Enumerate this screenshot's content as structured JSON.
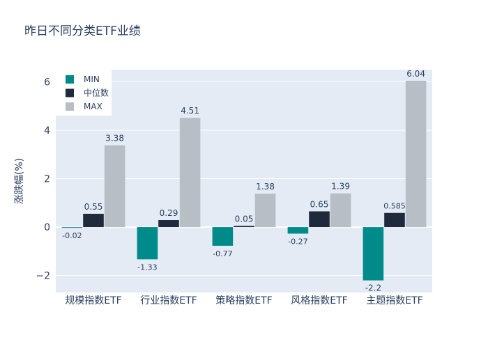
{
  "chart_data": {
    "type": "bar",
    "title": "昨日不同分类ETF业绩",
    "xlabel": "",
    "ylabel": "涨跌幅(%)",
    "categories": [
      "规模指数ETF",
      "行业指数ETF",
      "策略指数ETF",
      "风格指数ETF",
      "主题指数ETF"
    ],
    "series": [
      {
        "name": "MIN",
        "values": [
          -0.02,
          -1.33,
          -0.77,
          -0.27,
          -2.2
        ],
        "labels": [
          "-0.02",
          "-1.33",
          "-0.77",
          "-0.27",
          "-2.2"
        ],
        "color": "#008b8b"
      },
      {
        "name": "中位数",
        "values": [
          0.55,
          0.29,
          0.05,
          0.65,
          0.585
        ],
        "labels": [
          "0.55",
          "0.29",
          "0.05",
          "0.65",
          "0.585"
        ],
        "color": "#1f2a3c"
      },
      {
        "name": "MAX",
        "values": [
          3.38,
          4.51,
          1.38,
          1.39,
          6.04
        ],
        "labels": [
          "3.38",
          "4.51",
          "1.38",
          "1.39",
          "6.04"
        ],
        "color": "#b8bec6"
      }
    ],
    "ylim": [
      -2.7,
      6.5
    ],
    "yticks": [
      -2,
      0,
      2,
      4,
      6
    ],
    "ytick_labels": [
      "−2",
      "0",
      "2",
      "4",
      "6"
    ],
    "grid": true,
    "legend_position": "top-left",
    "plot_background": "#e5ebf5"
  }
}
